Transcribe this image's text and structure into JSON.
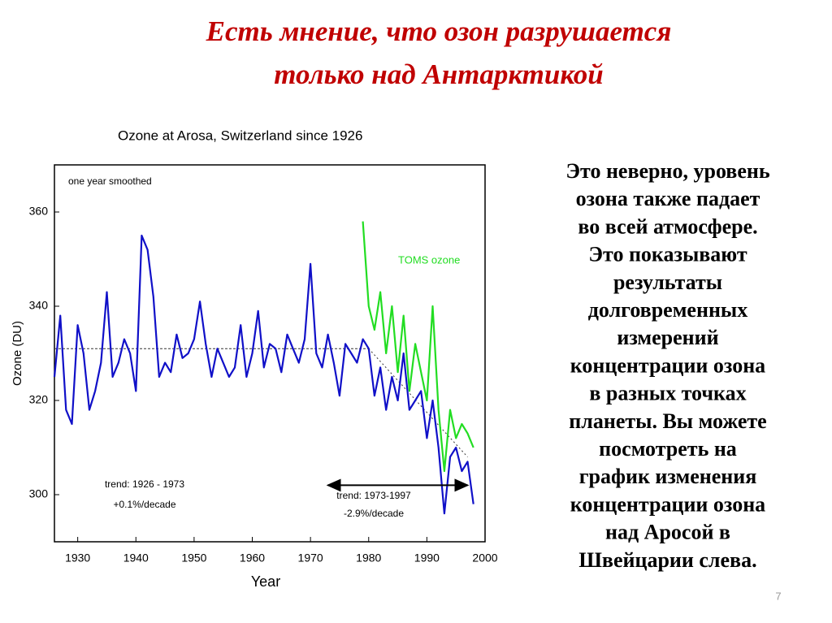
{
  "slide": {
    "title": [
      "Есть мнение, что озон разрушается",
      "только над Антарктикой"
    ],
    "text_lines": [
      "Это неверно, уровень",
      "озона также падает",
      "во всей атмосфере.",
      "Это показывают",
      "результаты",
      "долговременных",
      "измерений",
      "концентрации озона",
      "в разных точках",
      "планеты. Вы можете",
      "посмотреть на",
      "график изменения",
      "концентрации озона",
      "над Аросой в",
      "Швейцарии слева."
    ],
    "page_number": "7"
  },
  "chart_data": {
    "type": "line",
    "title": "Ozone at Arosa, Switzerland since 1926",
    "x_label": "Year",
    "y_label": "Ozone (DU)",
    "xlim": [
      1926,
      2000
    ],
    "ylim": [
      290,
      370
    ],
    "xticks": [
      1930,
      1940,
      1950,
      1960,
      1970,
      1980,
      1990,
      2000
    ],
    "yticks": [
      300,
      320,
      340,
      360
    ],
    "series": [
      {
        "color": "#1010c8",
        "x": [
          1926,
          1927,
          1928,
          1929,
          1930,
          1931,
          1932,
          1933,
          1934,
          1935,
          1936,
          1937,
          1938,
          1939,
          1940,
          1941,
          1942,
          1943,
          1944,
          1945,
          1946,
          1947,
          1948,
          1949,
          1950,
          1951,
          1952,
          1953,
          1954,
          1955,
          1956,
          1957,
          1958,
          1959,
          1960,
          1961,
          1962,
          1963,
          1964,
          1965,
          1966,
          1967,
          1968,
          1969,
          1970,
          1971,
          1972,
          1973,
          1974,
          1975,
          1976,
          1977,
          1978,
          1979,
          1980,
          1981,
          1982,
          1983,
          1984,
          1985,
          1986,
          1987,
          1988,
          1989,
          1990,
          1991,
          1992,
          1993,
          1994,
          1995,
          1996,
          1997,
          1998
        ],
        "values": [
          325,
          338,
          318,
          315,
          336,
          330,
          318,
          322,
          328,
          343,
          325,
          328,
          333,
          330,
          322,
          355,
          352,
          342,
          325,
          328,
          326,
          334,
          329,
          330,
          333,
          341,
          332,
          325,
          331,
          328,
          325,
          327,
          336,
          325,
          330,
          339,
          327,
          332,
          331,
          326,
          334,
          331,
          328,
          333,
          349,
          330,
          327,
          334,
          328,
          321,
          332,
          330,
          328,
          333,
          331,
          321,
          327,
          318,
          325,
          320,
          330,
          318,
          320,
          322,
          312,
          320,
          310,
          296,
          308,
          310,
          305,
          307,
          298
        ]
      },
      {
        "name": "TOMS ozone",
        "color": "#22dd22",
        "x": [
          1979,
          1980,
          1981,
          1982,
          1983,
          1984,
          1985,
          1986,
          1987,
          1988,
          1989,
          1990,
          1991,
          1992,
          1993,
          1994,
          1995,
          1996,
          1997,
          1998
        ],
        "values": [
          358,
          340,
          335,
          343,
          330,
          340,
          326,
          338,
          322,
          332,
          326,
          320,
          340,
          318,
          305,
          318,
          312,
          315,
          313,
          310
        ]
      }
    ],
    "trend_lines": [
      {
        "x": [
          1926,
          1980
        ],
        "values": [
          331,
          331
        ]
      },
      {
        "x": [
          1980,
          1997
        ],
        "values": [
          331,
          308
        ]
      }
    ],
    "trend_arrow": {
      "x": [
        1973,
        1997
      ],
      "y": 302
    },
    "annotations": [
      "one year smoothed",
      "trend: 1926 - 1973",
      "+0.1%/decade",
      "trend: 1973-1997",
      "-2.9%/decade"
    ]
  }
}
